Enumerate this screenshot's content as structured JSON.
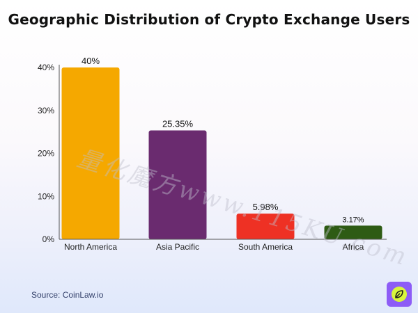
{
  "title": "Geographic Distribution of Crypto Exchange Users",
  "watermark": "量化魔方www.115KU.com",
  "source": "Source: CoinLaw.io",
  "chart_data": {
    "type": "bar",
    "title": "Geographic Distribution of Crypto Exchange Users",
    "categories": [
      "North America",
      "Asia Pacific",
      "South America",
      "Africa"
    ],
    "values": [
      40,
      25.35,
      5.98,
      3.17
    ],
    "value_labels": [
      "40%",
      "25.35%",
      "5.98%",
      "3.17%"
    ],
    "colors": [
      "#f5a800",
      "#6a2b6f",
      "#ee3124",
      "#2e5b14"
    ],
    "ylim": [
      0,
      40
    ],
    "yticks": [
      0,
      10,
      20,
      30,
      40
    ],
    "ytick_labels": [
      "0%",
      "10%",
      "20%",
      "30%",
      "40%"
    ],
    "xlabel": "",
    "ylabel": "",
    "grid": false
  }
}
